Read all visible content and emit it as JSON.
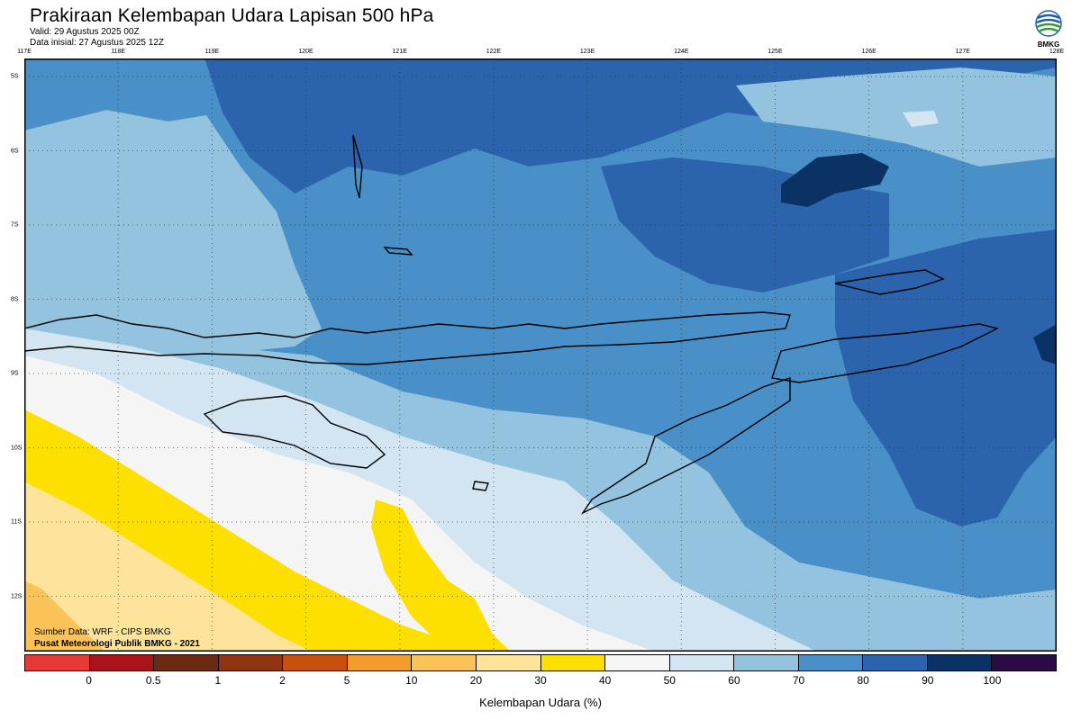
{
  "header": {
    "title": "Prakiraan Kelembapan Udara Lapisan 500 hPa",
    "valid": "Valid: 29 Agustus 2025 00Z",
    "initial": "Data inisial: 27 Agustus 2025 12Z",
    "logo_text": "BMKG"
  },
  "map": {
    "lon_labels": [
      "117E",
      "118E",
      "119E",
      "120E",
      "121E",
      "122E",
      "123E",
      "124E",
      "125E",
      "126E",
      "127E",
      "128E"
    ],
    "lat_labels": [
      "5S",
      "6S",
      "7S",
      "8S",
      "9S",
      "10S",
      "11S",
      "12S"
    ],
    "source_line1": "Sumber Data: WRF - CIPS BMKG",
    "source_line2": "Pusat Meteorologi Publik BMKG - 2021"
  },
  "legend": {
    "title": "Kelembapan Udara (%)",
    "ticks": [
      "0",
      "0.5",
      "1",
      "2",
      "5",
      "10",
      "20",
      "30",
      "40",
      "50",
      "60",
      "70",
      "80",
      "90",
      "100"
    ],
    "colors": [
      "#e53a35",
      "#a8141a",
      "#6b2a12",
      "#8f3310",
      "#c9500c",
      "#f39b2c",
      "#fbc257",
      "#fde49a",
      "#fbe000",
      "#f5f5f5",
      "#d4e5f2",
      "#93c3df",
      "#4a90c8",
      "#2b64ad",
      "#0b3265",
      "#2a0b46"
    ],
    "band_colors": {
      "yellow": "#fde000",
      "light_yellow": "#fde49a",
      "orange": "#fbc257",
      "white": "#f5f5f5",
      "pale_blue": "#d4e5f2",
      "light_blue": "#93c3df",
      "mid_blue": "#4a90c8",
      "dark_blue": "#2b64ad",
      "navy": "#0b3265"
    }
  }
}
